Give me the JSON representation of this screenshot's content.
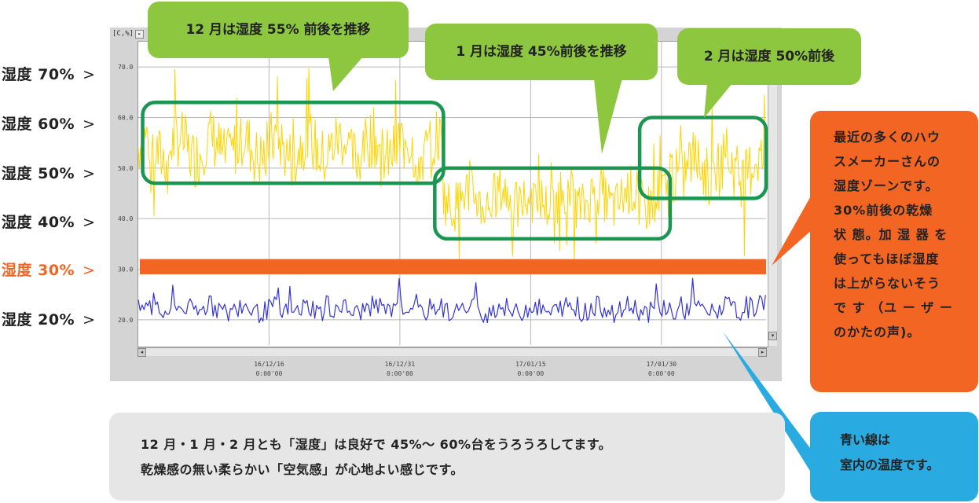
{
  "side_labels": [
    {
      "text": "湿度 70%",
      "color": "#222222"
    },
    {
      "text": "湿度 60%",
      "color": "#222222"
    },
    {
      "text": "湿度 50%",
      "color": "#222222"
    },
    {
      "text": "湿度 40%",
      "color": "#222222"
    },
    {
      "text": "湿度 30%",
      "color": "#f26522"
    },
    {
      "text": "湿度 20%",
      "color": "#222222"
    }
  ],
  "chevron": ">",
  "unit_label": "[C,%]",
  "callouts": {
    "dec": "12 月は湿度 55% 前後を推移",
    "jan": "1 月は湿度 45%前後を推移",
    "feb": "2 月は湿度 50%前後",
    "house_maker": [
      "最近の多くのハウ",
      "スメーカーさんの",
      "湿度ゾーンです。",
      "30%前後の乾燥",
      "状 態。加 湿 器 を",
      "使ってもほぼ湿度",
      "は上がらないそう",
      "で す （ユ ー ザ ー",
      "のかたの声)。"
    ],
    "blue_line": [
      "青い線は",
      "室内の温度です。"
    ],
    "summary": [
      "12 月・1 月・2 月とも「湿度」は良好で 45%〜 60%台をうろうろしてます。",
      "乾燥感の無い柔らかい「空気感」が心地よい感じです。"
    ]
  },
  "colors": {
    "humidity": "#ffd400",
    "temperature": "#3333dd",
    "highlight_30": "#f26522",
    "box_outline": "#1a9650",
    "callout_green": "#8dc63f",
    "callout_orange": "#f26522",
    "callout_blue": "#29abe2"
  },
  "chart_data": {
    "type": "line",
    "ylim": [
      15,
      75
    ],
    "y_ticks": [
      "70.0",
      "60.0",
      "50.0",
      "40.0",
      "30.0",
      "20.0"
    ],
    "y_tick_values": [
      70,
      60,
      50,
      40,
      30,
      20
    ],
    "x_ticks": [
      {
        "date": "16/12/16",
        "time": "0:00'00",
        "day": 15
      },
      {
        "date": "16/12/31",
        "time": "0:00'00",
        "day": 30
      },
      {
        "date": "17/01/15",
        "time": "0:00'00",
        "day": 45
      },
      {
        "date": "17/01/30",
        "time": "0:00'00",
        "day": 60
      }
    ],
    "xlim_days": [
      0,
      72
    ],
    "series": [
      {
        "key": "humidity",
        "segments": [
          {
            "from": 0,
            "to": 35,
            "mean": 54,
            "amp": 6
          },
          {
            "from": 35,
            "to": 61,
            "mean": 44,
            "amp": 5
          },
          {
            "from": 61,
            "to": 72,
            "mean": 50,
            "amp": 6
          }
        ]
      },
      {
        "key": "temperature",
        "segments": [
          {
            "from": 0,
            "to": 72,
            "mean": 22,
            "amp": 2
          }
        ]
      }
    ],
    "band": {
      "from": 29,
      "to": 32
    },
    "regions": [
      {
        "from_day": 0.5,
        "to_day": 35,
        "y_top": 63,
        "y_bottom": 47
      },
      {
        "from_day": 34,
        "to_day": 61,
        "y_top": 50,
        "y_bottom": 36
      },
      {
        "from_day": 57.5,
        "to_day": 72,
        "y_top": 60,
        "y_bottom": 44
      }
    ],
    "grid": true
  }
}
